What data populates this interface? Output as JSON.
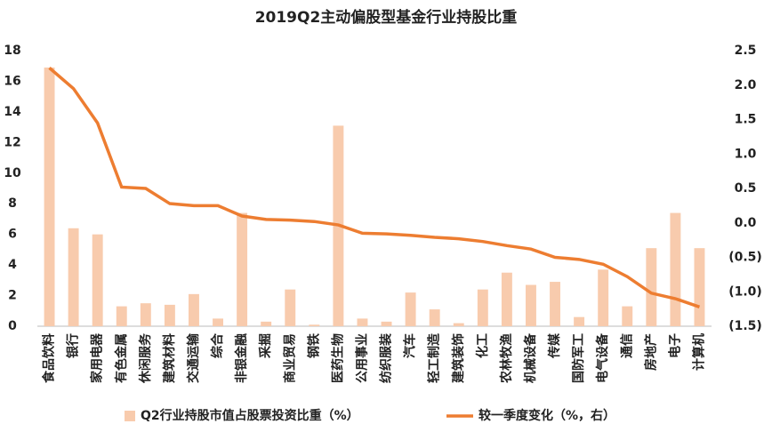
{
  "chart_data": {
    "type": "bar-line",
    "title": "2019Q2主动偏股型基金行业持股比重",
    "categories": [
      "食品饮料",
      "银行",
      "家用电器",
      "有色金属",
      "休闲服务",
      "建筑材料",
      "交通运输",
      "综合",
      "非银金融",
      "采掘",
      "商业贸易",
      "钢铁",
      "医药生物",
      "公用事业",
      "纺织服装",
      "汽车",
      "轻工制造",
      "建筑装饰",
      "化工",
      "农林牧渔",
      "机械设备",
      "传媒",
      "国防军工",
      "电气设备",
      "通信",
      "房地产",
      "电子",
      "计算机"
    ],
    "series": [
      {
        "name": "Q2行业持股市值占股票投资比重（%）",
        "type": "bar",
        "color": "#f8cbad",
        "values": [
          16.9,
          6.4,
          6.0,
          1.3,
          1.5,
          1.4,
          2.1,
          0.5,
          7.4,
          0.3,
          2.4,
          0.1,
          13.1,
          0.5,
          0.3,
          2.2,
          1.1,
          0.2,
          2.4,
          3.5,
          2.7,
          2.9,
          0.6,
          3.7,
          1.3,
          5.1,
          7.4,
          5.1
        ]
      },
      {
        "name": "较一季度变化（%，右）",
        "type": "line",
        "axis": "y2",
        "color": "#ed7d31",
        "values": [
          2.25,
          1.95,
          1.45,
          0.52,
          0.5,
          0.28,
          0.25,
          0.25,
          0.1,
          0.05,
          0.04,
          0.02,
          -0.03,
          -0.15,
          -0.16,
          -0.18,
          -0.21,
          -0.23,
          -0.27,
          -0.33,
          -0.38,
          -0.5,
          -0.53,
          -0.6,
          -0.78,
          -1.02,
          -1.1,
          -1.22
        ]
      }
    ],
    "ylim": [
      0,
      18
    ],
    "yticks": [
      0,
      2,
      4,
      6,
      8,
      10,
      12,
      14,
      16,
      18
    ],
    "y2lim": [
      -1.5,
      2.5
    ],
    "y2ticks": [
      {
        "value": -1.5,
        "label": "(1.5)"
      },
      {
        "value": -1,
        "label": "(1.0)"
      },
      {
        "value": -0.5,
        "label": "(0.5)"
      },
      {
        "value": 0,
        "label": "0.0"
      },
      0.5,
      {
        "value": 1,
        "label": "1.0"
      },
      1.5,
      {
        "value": 2,
        "label": "2.0"
      },
      2.5
    ],
    "y2_negative_tick_color": "#ff0000",
    "legend": "bottom"
  }
}
